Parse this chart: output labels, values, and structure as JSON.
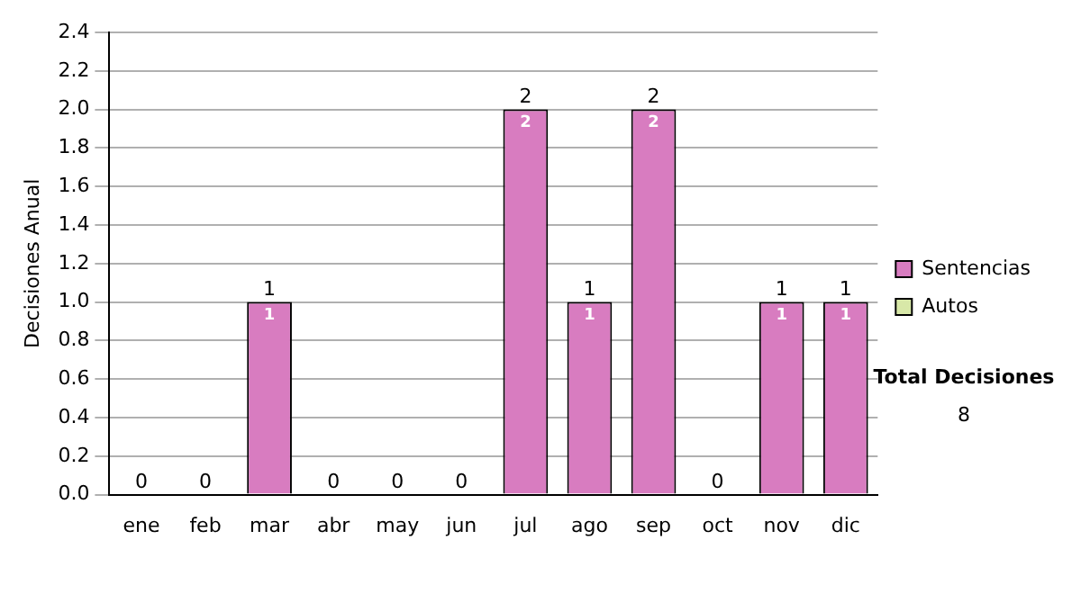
{
  "chart_data": {
    "type": "bar",
    "stacked": true,
    "ylabel": "Decisiones Anual",
    "categories": [
      "ene",
      "feb",
      "mar",
      "abr",
      "may",
      "jun",
      "jul",
      "ago",
      "sep",
      "oct",
      "nov",
      "dic"
    ],
    "series": [
      {
        "name": "Sentencias",
        "color": "#d87cc0",
        "values": [
          0,
          0,
          1,
          0,
          0,
          0,
          2,
          1,
          2,
          0,
          1,
          1
        ],
        "value_labels": [
          null,
          null,
          "1",
          null,
          null,
          null,
          "2",
          "1",
          "2",
          null,
          "1",
          "1"
        ]
      },
      {
        "name": "Autos",
        "color": "#d8e8a8",
        "values": [
          0,
          0,
          0,
          0,
          0,
          0,
          0,
          0,
          0,
          0,
          0,
          0
        ]
      }
    ],
    "totals": [
      "0",
      "0",
      "1",
      "0",
      "0",
      "0",
      "2",
      "1",
      "2",
      "0",
      "1",
      "1"
    ],
    "ylim": [
      0,
      2.4
    ],
    "yticks": [
      {
        "value": 0,
        "label": "0.0"
      },
      {
        "value": 0.2,
        "label": "0.2"
      },
      {
        "value": 0.4,
        "label": "0.4"
      },
      {
        "value": 0.6,
        "label": "0.6"
      },
      {
        "value": 0.8,
        "label": "0.8"
      },
      {
        "value": 1,
        "label": "1.0"
      },
      {
        "value": 1.2,
        "label": "1.2"
      },
      {
        "value": 1.4,
        "label": "1.4"
      },
      {
        "value": 1.6,
        "label": "1.6"
      },
      {
        "value": 1.8,
        "label": "1.8"
      },
      {
        "value": 2,
        "label": "2.0"
      },
      {
        "value": 2.2,
        "label": "2.2"
      },
      {
        "value": 2.4,
        "label": "2.4"
      }
    ],
    "grid": "y",
    "legend": "right",
    "annotations": [
      "Total Decisiones",
      "8"
    ]
  }
}
